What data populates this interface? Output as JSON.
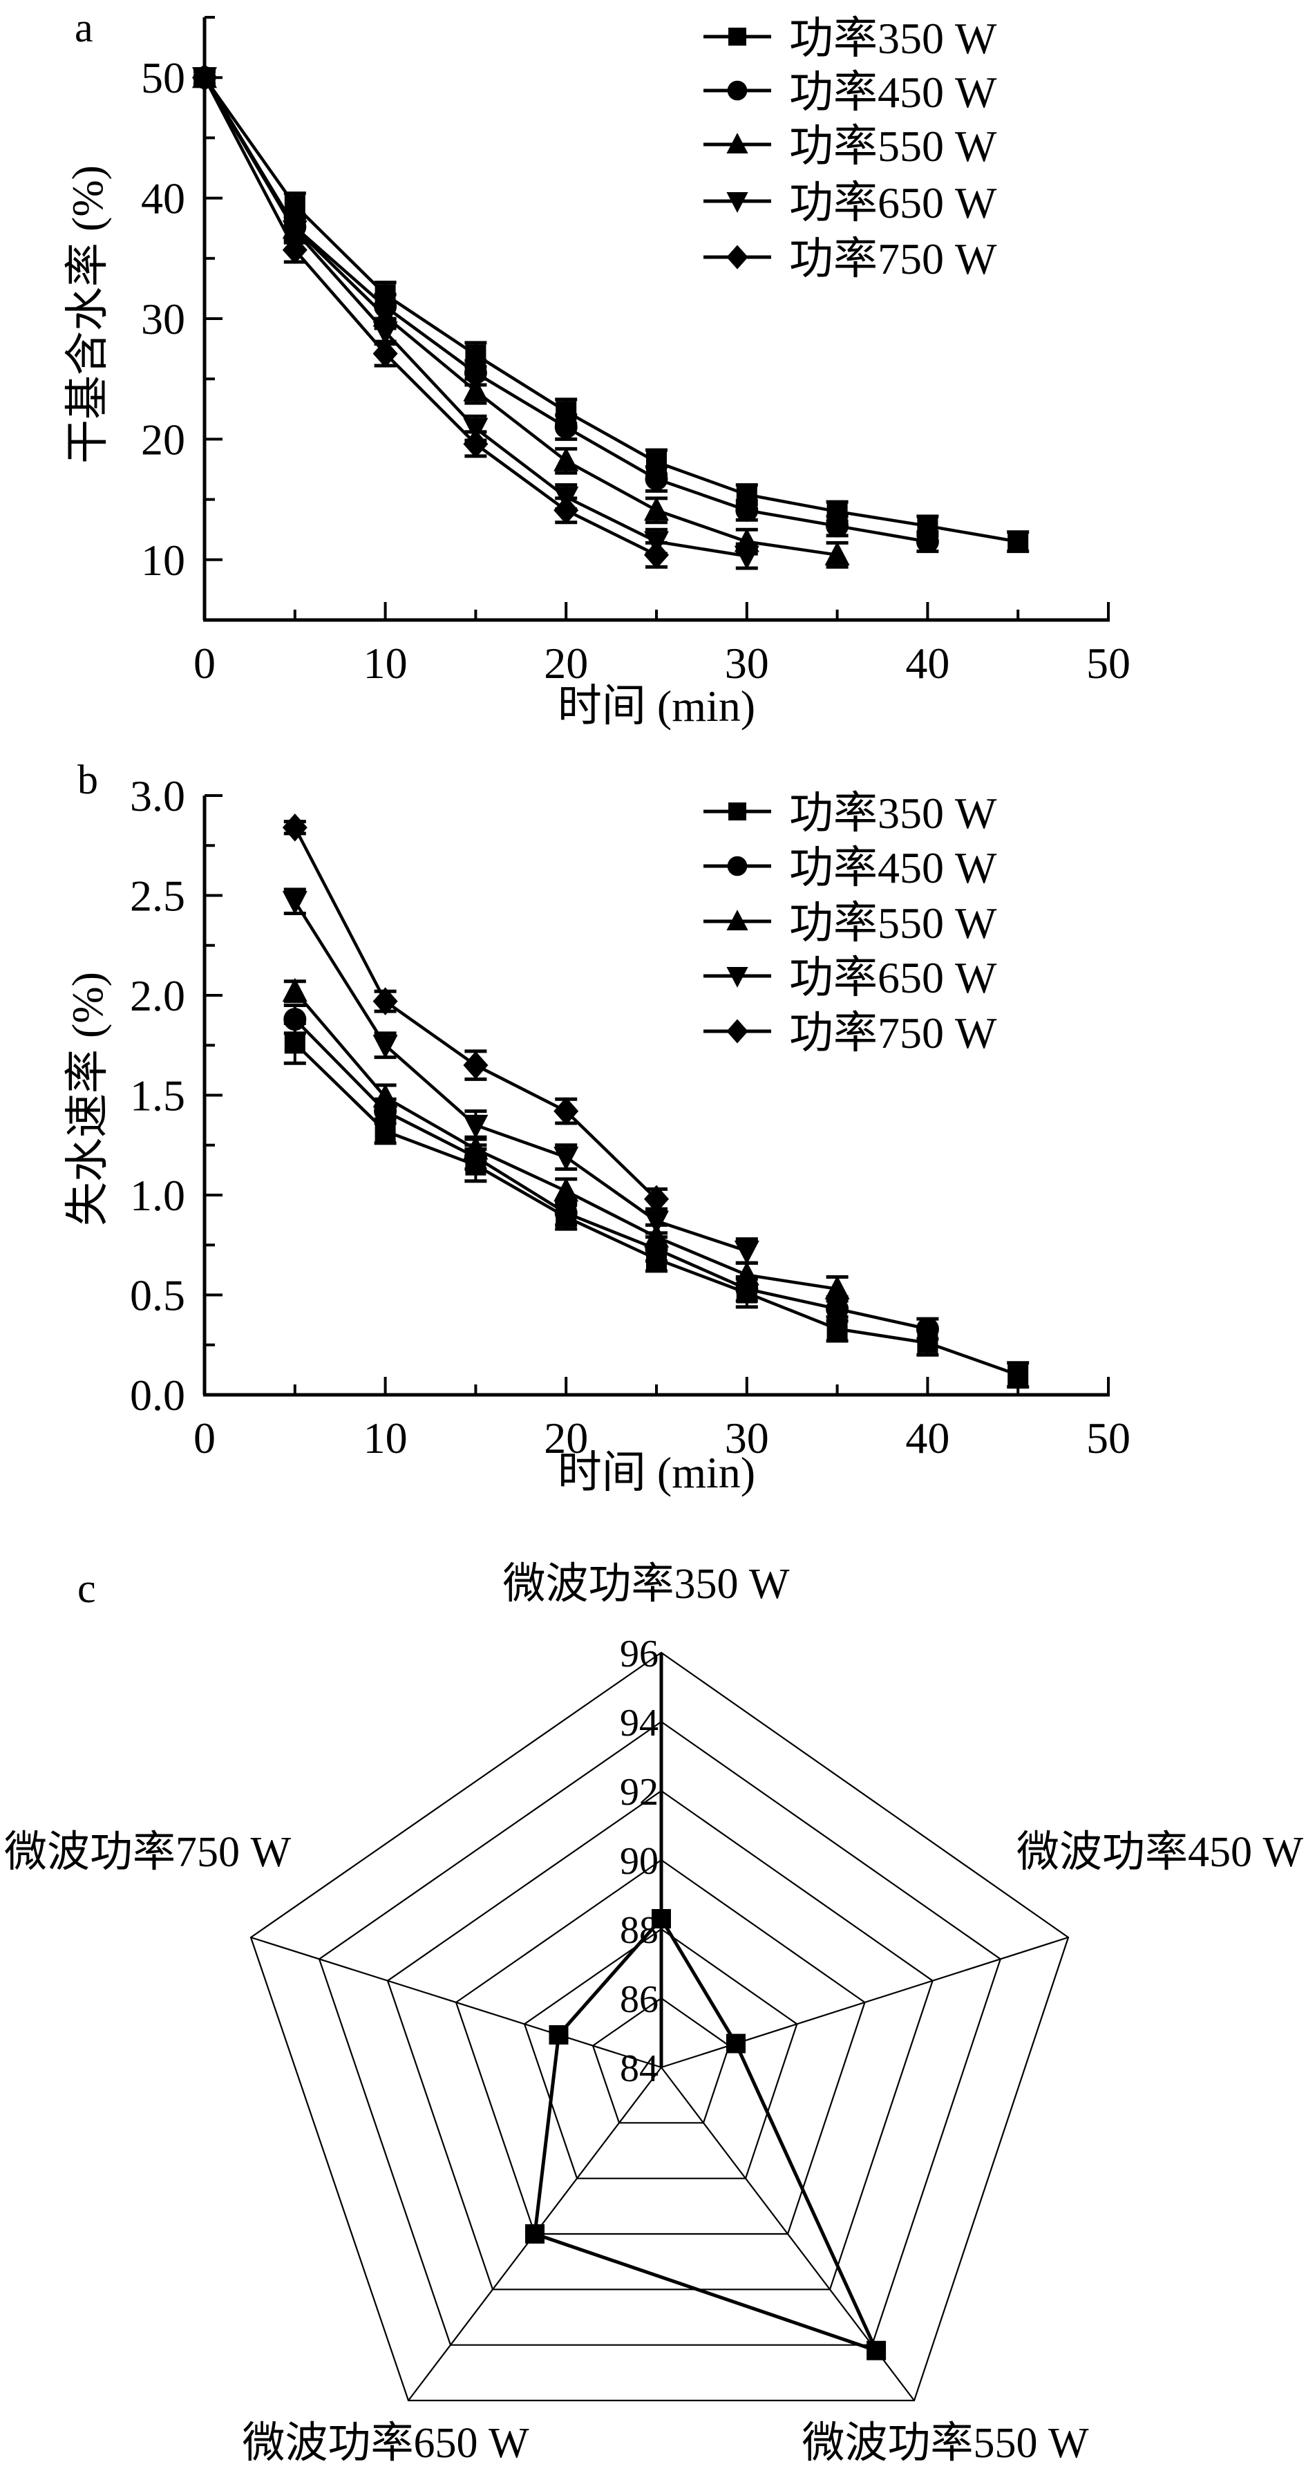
{
  "chart_data": [
    {
      "panel": "a",
      "type": "line",
      "xlabel": "时间 (min)",
      "ylabel": "干基含水率 (%)",
      "xlim": [
        0,
        50
      ],
      "ylim": [
        5,
        55
      ],
      "xticks": [
        0,
        10,
        20,
        30,
        40,
        50
      ],
      "yticks": [
        10,
        20,
        30,
        40,
        50
      ],
      "grid": false,
      "legend_position": "top-right",
      "series": [
        {
          "name": "功率350 W",
          "marker": "square",
          "x": [
            0,
            5,
            10,
            15,
            20,
            25,
            30,
            35,
            40,
            45
          ],
          "values": [
            50,
            39.4,
            32.0,
            27.0,
            22.3,
            18.1,
            15.4,
            14.0,
            12.8,
            11.5
          ],
          "error": [
            0.5,
            1.0,
            1.0,
            1.0,
            1.0,
            1.0,
            0.8,
            0.8,
            0.8,
            0.8
          ]
        },
        {
          "name": "功率450 W",
          "marker": "circle",
          "x": [
            0,
            5,
            10,
            15,
            20,
            25,
            30,
            35,
            40
          ],
          "values": [
            50,
            37.6,
            31.0,
            25.5,
            21.0,
            16.7,
            14.1,
            12.8,
            11.5
          ],
          "error": [
            0.5,
            1.0,
            1.0,
            1.0,
            1.0,
            1.0,
            0.8,
            0.8,
            0.8
          ]
        },
        {
          "name": "功率550 W",
          "marker": "triangle-up",
          "x": [
            0,
            5,
            10,
            15,
            20,
            25,
            30,
            35
          ],
          "values": [
            50,
            37.5,
            30.2,
            24.0,
            18.2,
            14.1,
            11.5,
            10.4
          ],
          "error": [
            0.5,
            1.0,
            1.0,
            1.0,
            1.0,
            1.0,
            1.0,
            1.0
          ]
        },
        {
          "name": "功率650 W",
          "marker": "triangle-down",
          "x": [
            0,
            5,
            10,
            15,
            20,
            25,
            30
          ],
          "values": [
            50,
            37.3,
            28.9,
            20.9,
            15.2,
            11.5,
            10.3
          ],
          "error": [
            0.5,
            1.0,
            1.0,
            1.0,
            1.0,
            1.0,
            1.0
          ]
        },
        {
          "name": "功率750 W",
          "marker": "diamond",
          "x": [
            0,
            5,
            10,
            15,
            20,
            25
          ],
          "values": [
            50,
            35.7,
            27.1,
            19.6,
            14.1,
            10.4
          ],
          "error": [
            0.5,
            1.0,
            1.0,
            1.0,
            1.0,
            1.0
          ]
        }
      ]
    },
    {
      "panel": "b",
      "type": "line",
      "xlabel": "时间 (min)",
      "ylabel": "失水速率 (%)",
      "xlim": [
        0,
        50
      ],
      "ylim": [
        0,
        3
      ],
      "xticks": [
        0,
        10,
        20,
        30,
        40,
        50
      ],
      "yticks": [
        "0.0",
        "0.5",
        "1.0",
        "1.5",
        "2.0",
        "2.5",
        "3.0"
      ],
      "grid": false,
      "legend_position": "top-right",
      "series": [
        {
          "name": "功率350 W",
          "marker": "square",
          "x": [
            5,
            10,
            15,
            20,
            25,
            30,
            35,
            40,
            45
          ],
          "values": [
            1.76,
            1.32,
            1.15,
            0.89,
            0.68,
            0.51,
            0.33,
            0.26,
            0.1
          ],
          "error": [
            0.1,
            0.06,
            0.08,
            0.06,
            0.06,
            0.07,
            0.06,
            0.06,
            0.06
          ]
        },
        {
          "name": "功率450 W",
          "marker": "circle",
          "x": [
            5,
            10,
            15,
            20,
            25,
            30,
            35,
            40
          ],
          "values": [
            1.88,
            1.42,
            1.19,
            0.91,
            0.73,
            0.53,
            0.43,
            0.33
          ],
          "error": [
            0.07,
            0.06,
            0.06,
            0.06,
            0.06,
            0.06,
            0.06,
            0.05
          ]
        },
        {
          "name": "功率550 W",
          "marker": "triangle-up",
          "x": [
            5,
            10,
            15,
            20,
            25,
            30,
            35
          ],
          "values": [
            2.02,
            1.49,
            1.23,
            1.02,
            0.79,
            0.6,
            0.53
          ],
          "error": [
            0.05,
            0.06,
            0.06,
            0.06,
            0.06,
            0.06,
            0.06
          ]
        },
        {
          "name": "功率650 W",
          "marker": "triangle-down",
          "x": [
            5,
            10,
            15,
            20,
            25,
            30
          ],
          "values": [
            2.47,
            1.75,
            1.35,
            1.19,
            0.87,
            0.72
          ],
          "error": [
            0.06,
            0.06,
            0.07,
            0.06,
            0.06,
            0.06
          ]
        },
        {
          "name": "功率750 W",
          "marker": "diamond",
          "x": [
            5,
            10,
            15,
            20,
            25
          ],
          "values": [
            2.84,
            1.97,
            1.65,
            1.42,
            0.98
          ],
          "error": [
            0.03,
            0.05,
            0.07,
            0.06,
            0.05
          ]
        }
      ]
    },
    {
      "panel": "c",
      "type": "radar",
      "rlim": [
        84,
        96
      ],
      "rticks": [
        84,
        86,
        88,
        90,
        92,
        94,
        96
      ],
      "categories": [
        "微波功率350 W",
        "微波功率450 W",
        "微波功率550 W",
        "微波功率650 W",
        "微波功率750 W"
      ],
      "values": [
        88.3,
        86.2,
        94.2,
        90.0,
        87.0
      ]
    }
  ],
  "panels": {
    "a_label": "a",
    "b_label": "b",
    "c_label": "c"
  }
}
